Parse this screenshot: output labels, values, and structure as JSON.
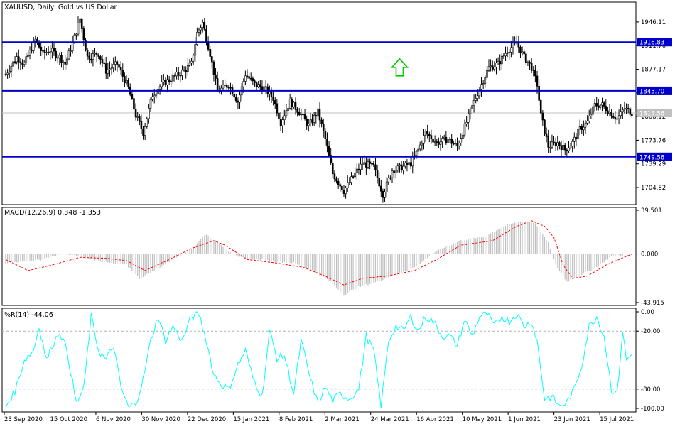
{
  "colors": {
    "background": "#ffffff",
    "frame": "#000000",
    "candle": "#000000",
    "level_line": "#0000cd",
    "price_line": "#c0c0c0",
    "macd_histogram": "#c0c0c0",
    "macd_signal": "#ff0000",
    "wr_line": "#00ffff",
    "wr_level": "#b0b0b0",
    "arrow": "#00cc00",
    "level_tag_bg": "#0000cd",
    "level_tag_text": "#ffffff",
    "current_tag_bg": "#c0c0c0"
  },
  "chart_data": [
    {
      "type": "candlestick",
      "title": "XAUUSD, Daily:  Gold vs US Dollar",
      "ylim": [
        1680,
        1975
      ],
      "y_ticks": [
        "1946.11",
        "1911.70",
        "1877.17",
        "1842.65",
        "1808.12",
        "1773.76",
        "1739.29",
        "1704.82"
      ],
      "y_tick_values": [
        1946.11,
        1911.7,
        1877.17,
        1842.65,
        1808.12,
        1773.76,
        1739.29,
        1704.82
      ],
      "x_ticks": [
        "23 Sep 2020",
        "15 Oct 2020",
        "6 Nov 2020",
        "30 Nov 2020",
        "22 Dec 2020",
        "15 Jan 2021",
        "8 Feb 2021",
        "2 Mar 2021",
        "24 Mar 2021",
        "16 Apr 2021",
        "10 May 2021",
        "1 Jun 2021",
        "23 Jun 2021",
        "15 Jul 2021"
      ],
      "levels": [
        {
          "label": "1916.83",
          "value": 1916.83
        },
        {
          "label": "1845.70",
          "value": 1845.7
        },
        {
          "label": "1749.56",
          "value": 1749.56
        }
      ],
      "current_price": {
        "label": "1813.56",
        "value": 1813.56
      },
      "grid": false,
      "annotations": [
        {
          "type": "arrow-up",
          "x_index": 212,
          "value": 1880
        }
      ],
      "path_points": [
        [
          0,
          1870
        ],
        [
          6,
          1895
        ],
        [
          10,
          1885
        ],
        [
          16,
          1920
        ],
        [
          20,
          1900
        ],
        [
          24,
          1905
        ],
        [
          29,
          1895
        ],
        [
          32,
          1885
        ],
        [
          36,
          1915
        ],
        [
          40,
          1950
        ],
        [
          44,
          1895
        ],
        [
          50,
          1900
        ],
        [
          54,
          1875
        ],
        [
          60,
          1885
        ],
        [
          66,
          1850
        ],
        [
          70,
          1810
        ],
        [
          74,
          1785
        ],
        [
          79,
          1840
        ],
        [
          84,
          1855
        ],
        [
          90,
          1865
        ],
        [
          96,
          1875
        ],
        [
          100,
          1885
        ],
        [
          103,
          1930
        ],
        [
          106,
          1945
        ],
        [
          110,
          1900
        ],
        [
          114,
          1845
        ],
        [
          120,
          1855
        ],
        [
          125,
          1830
        ],
        [
          129,
          1870
        ],
        [
          134,
          1855
        ],
        [
          139,
          1850
        ],
        [
          144,
          1835
        ],
        [
          148,
          1800
        ],
        [
          153,
          1830
        ],
        [
          158,
          1815
        ],
        [
          163,
          1795
        ],
        [
          168,
          1815
        ],
        [
          172,
          1775
        ],
        [
          176,
          1725
        ],
        [
          182,
          1700
        ],
        [
          188,
          1725
        ],
        [
          192,
          1740
        ],
        [
          198,
          1735
        ],
        [
          203,
          1695
        ],
        [
          208,
          1730
        ],
        [
          214,
          1735
        ],
        [
          218,
          1740
        ],
        [
          222,
          1760
        ],
        [
          226,
          1785
        ],
        [
          232,
          1770
        ],
        [
          238,
          1775
        ],
        [
          243,
          1765
        ],
        [
          248,
          1800
        ],
        [
          252,
          1830
        ],
        [
          256,
          1855
        ],
        [
          260,
          1880
        ],
        [
          265,
          1885
        ],
        [
          270,
          1905
        ],
        [
          275,
          1915
        ],
        [
          279,
          1895
        ],
        [
          283,
          1880
        ],
        [
          286,
          1855
        ],
        [
          288,
          1810
        ],
        [
          292,
          1765
        ],
        [
          297,
          1770
        ],
        [
          301,
          1760
        ],
        [
          305,
          1770
        ],
        [
          309,
          1790
        ],
        [
          313,
          1800
        ],
        [
          317,
          1825
        ],
        [
          321,
          1825
        ],
        [
          325,
          1815
        ],
        [
          329,
          1805
        ],
        [
          333,
          1820
        ],
        [
          337,
          1814
        ]
      ]
    },
    {
      "type": "bar+line",
      "title": "MACD(12,26,9) 0.348 -1.353",
      "ylim": [
        -43.915,
        39.501
      ],
      "y_ticks": [
        "39.501",
        "0.000",
        "-43.915"
      ],
      "y_tick_values": [
        39.501,
        0,
        -43.915
      ],
      "series": [
        {
          "name": "MACD",
          "kind": "histogram",
          "points": [
            [
              0,
              -8
            ],
            [
              20,
              -5
            ],
            [
              30,
              0
            ],
            [
              40,
              -2
            ],
            [
              55,
              -8
            ],
            [
              65,
              -10
            ],
            [
              72,
              -22
            ],
            [
              80,
              -15
            ],
            [
              90,
              -5
            ],
            [
              100,
              5
            ],
            [
              108,
              18
            ],
            [
              116,
              8
            ],
            [
              125,
              -3
            ],
            [
              140,
              -6
            ],
            [
              155,
              -8
            ],
            [
              165,
              -15
            ],
            [
              175,
              -25
            ],
            [
              182,
              -37
            ],
            [
              190,
              -30
            ],
            [
              200,
              -25
            ],
            [
              210,
              -18
            ],
            [
              220,
              -12
            ],
            [
              232,
              3
            ],
            [
              245,
              12
            ],
            [
              258,
              16
            ],
            [
              268,
              25
            ],
            [
              278,
              30
            ],
            [
              285,
              28
            ],
            [
              292,
              10
            ],
            [
              296,
              -10
            ],
            [
              302,
              -25
            ],
            [
              308,
              -20
            ],
            [
              318,
              -12
            ],
            [
              326,
              -2
            ],
            [
              337,
              0
            ]
          ]
        },
        {
          "name": "Signal",
          "kind": "line",
          "points": [
            [
              0,
              -5
            ],
            [
              12,
              -15
            ],
            [
              25,
              -10
            ],
            [
              40,
              -3
            ],
            [
              55,
              -4
            ],
            [
              65,
              -6
            ],
            [
              75,
              -15
            ],
            [
              88,
              -5
            ],
            [
              100,
              5
            ],
            [
              112,
              12
            ],
            [
              118,
              8
            ],
            [
              130,
              -5
            ],
            [
              145,
              -8
            ],
            [
              160,
              -12
            ],
            [
              172,
              -20
            ],
            [
              182,
              -28
            ],
            [
              192,
              -22
            ],
            [
              205,
              -20
            ],
            [
              220,
              -15
            ],
            [
              232,
              -5
            ],
            [
              245,
              8
            ],
            [
              262,
              12
            ],
            [
              275,
              25
            ],
            [
              283,
              30
            ],
            [
              290,
              25
            ],
            [
              295,
              15
            ],
            [
              300,
              -10
            ],
            [
              305,
              -22
            ],
            [
              313,
              -20
            ],
            [
              323,
              -10
            ],
            [
              337,
              0
            ]
          ]
        }
      ]
    },
    {
      "type": "line",
      "title": "%R(14) -44.06",
      "ylim": [
        -100,
        0
      ],
      "y_ticks": [
        "0.00",
        "-20.00",
        "-80.00",
        "-100.00"
      ],
      "y_tick_values": [
        0,
        -20,
        -80,
        -100
      ],
      "levels": [
        -20,
        -80
      ],
      "series": [
        {
          "name": "%R",
          "points": [
            [
              0,
              -98
            ],
            [
              5,
              -82
            ],
            [
              10,
              -50
            ],
            [
              15,
              -40
            ],
            [
              18,
              -15
            ],
            [
              22,
              -50
            ],
            [
              25,
              -35
            ],
            [
              29,
              -20
            ],
            [
              33,
              -40
            ],
            [
              38,
              -95
            ],
            [
              42,
              -80
            ],
            [
              46,
              -5
            ],
            [
              50,
              -40
            ],
            [
              54,
              -50
            ],
            [
              58,
              -35
            ],
            [
              62,
              -78
            ],
            [
              66,
              -99
            ],
            [
              70,
              -95
            ],
            [
              74,
              -70
            ],
            [
              78,
              -30
            ],
            [
              82,
              -5
            ],
            [
              86,
              -30
            ],
            [
              90,
              -15
            ],
            [
              95,
              -30
            ],
            [
              100,
              -5
            ],
            [
              104,
              -2
            ],
            [
              108,
              -30
            ],
            [
              112,
              -65
            ],
            [
              116,
              -75
            ],
            [
              120,
              -80
            ],
            [
              125,
              -55
            ],
            [
              129,
              -40
            ],
            [
              133,
              -68
            ],
            [
              138,
              -88
            ],
            [
              142,
              -20
            ],
            [
              146,
              -48
            ],
            [
              150,
              -45
            ],
            [
              155,
              -85
            ],
            [
              159,
              -30
            ],
            [
              164,
              -70
            ],
            [
              168,
              -95
            ],
            [
              172,
              -78
            ],
            [
              176,
              -92
            ],
            [
              180,
              -85
            ],
            [
              185,
              -90
            ],
            [
              190,
              -80
            ],
            [
              194,
              -25
            ],
            [
              198,
              -40
            ],
            [
              202,
              -98
            ],
            [
              206,
              -30
            ],
            [
              210,
              -15
            ],
            [
              214,
              -20
            ],
            [
              218,
              -5
            ],
            [
              222,
              -20
            ],
            [
              226,
              -5
            ],
            [
              230,
              -10
            ],
            [
              235,
              -25
            ],
            [
              239,
              -25
            ],
            [
              243,
              -35
            ],
            [
              247,
              -8
            ],
            [
              251,
              -25
            ],
            [
              255,
              -5
            ],
            [
              259,
              -2
            ],
            [
              263,
              -15
            ],
            [
              267,
              -5
            ],
            [
              271,
              -10
            ],
            [
              275,
              -2
            ],
            [
              279,
              -15
            ],
            [
              283,
              -10
            ],
            [
              286,
              -30
            ],
            [
              290,
              -90
            ],
            [
              294,
              -88
            ],
            [
              298,
              -98
            ],
            [
              302,
              -94
            ],
            [
              306,
              -80
            ],
            [
              310,
              -55
            ],
            [
              314,
              -15
            ],
            [
              318,
              -5
            ],
            [
              322,
              -25
            ],
            [
              326,
              -80
            ],
            [
              329,
              -85
            ],
            [
              332,
              -20
            ],
            [
              334,
              -50
            ],
            [
              337,
              -44
            ]
          ]
        }
      ]
    }
  ]
}
